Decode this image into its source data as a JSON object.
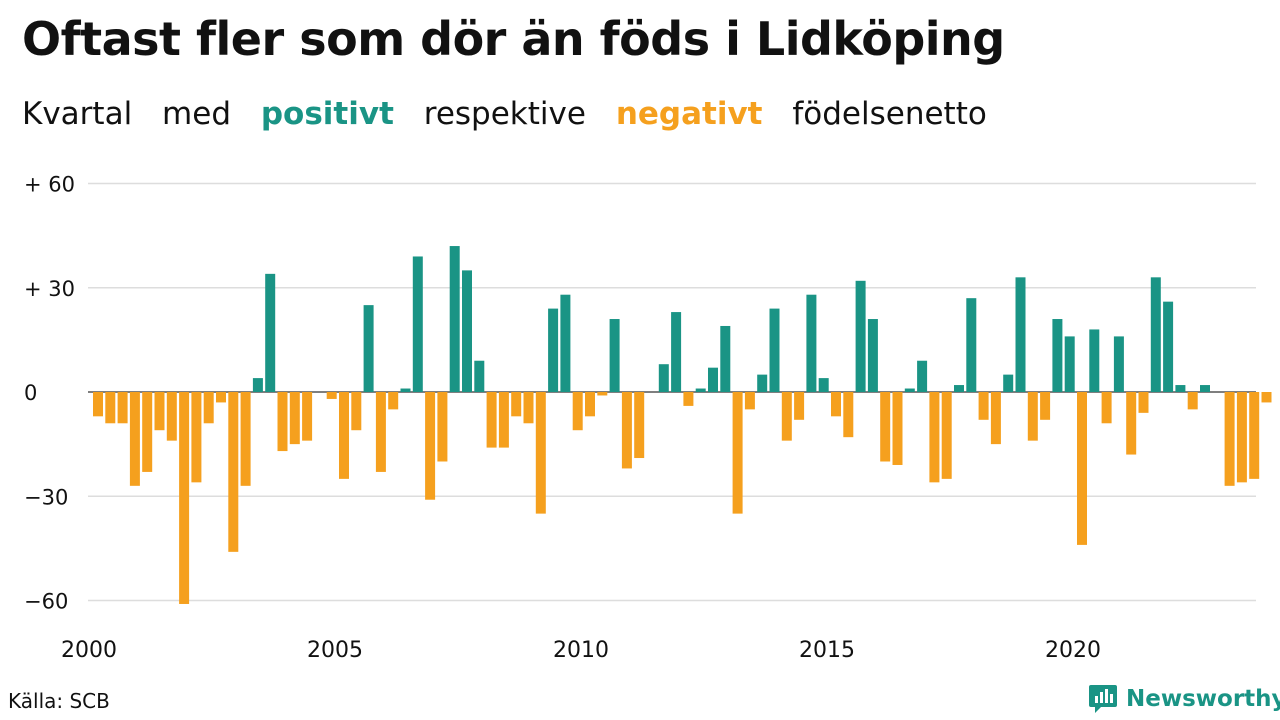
{
  "title": "Oftast fler som dör än föds i Lidköping",
  "subtitle": {
    "w1": "Kvartal",
    "w2": "med",
    "positive": "positivt",
    "w3": "respektive",
    "negative": "negativt",
    "w4": "födelsenetto"
  },
  "source": "Källa: SCB",
  "brand": "Newsworthy",
  "colors": {
    "positive": "#1a9485",
    "negative": "#f5a01e",
    "grid": "#dddddd",
    "axis": "#333333"
  },
  "chart_data": {
    "type": "bar",
    "title": "Oftast fler som dör än föds i Lidköping",
    "xlabel": "",
    "ylabel": "",
    "ylim": [
      -65,
      60
    ],
    "grid": true,
    "y_ticks": [
      {
        "value": 60,
        "label": "+ 60"
      },
      {
        "value": 30,
        "label": "+ 30"
      },
      {
        "value": 0,
        "label": "0"
      },
      {
        "value": -30,
        "label": "−30"
      },
      {
        "value": -60,
        "label": "−60"
      }
    ],
    "x_ticks": [
      "2000",
      "2005",
      "2010",
      "2015",
      "2020"
    ],
    "categories": [
      "2000 Q1",
      "2000 Q2",
      "2000 Q3",
      "2000 Q4",
      "2001 Q1",
      "2001 Q2",
      "2001 Q3",
      "2001 Q4",
      "2002 Q1",
      "2002 Q2",
      "2002 Q3",
      "2002 Q4",
      "2003 Q1",
      "2003 Q2",
      "2003 Q3",
      "2003 Q4",
      "2004 Q1",
      "2004 Q2",
      "2004 Q3",
      "2004 Q4",
      "2005 Q1",
      "2005 Q2",
      "2005 Q3",
      "2005 Q4",
      "2006 Q1",
      "2006 Q2",
      "2006 Q3",
      "2006 Q4",
      "2007 Q1",
      "2007 Q2",
      "2007 Q3",
      "2007 Q4",
      "2008 Q1",
      "2008 Q2",
      "2008 Q3",
      "2008 Q4",
      "2009 Q1",
      "2009 Q2",
      "2009 Q3",
      "2009 Q4",
      "2010 Q1",
      "2010 Q2",
      "2010 Q3",
      "2010 Q4",
      "2011 Q1",
      "2011 Q2",
      "2011 Q3",
      "2011 Q4",
      "2012 Q1",
      "2012 Q2",
      "2012 Q3",
      "2012 Q4",
      "2013 Q1",
      "2013 Q2",
      "2013 Q3",
      "2013 Q4",
      "2014 Q1",
      "2014 Q2",
      "2014 Q3",
      "2014 Q4",
      "2015 Q1",
      "2015 Q2",
      "2015 Q3",
      "2015 Q4",
      "2016 Q1",
      "2016 Q2",
      "2016 Q3",
      "2016 Q4",
      "2017 Q1",
      "2017 Q2",
      "2017 Q3",
      "2017 Q4",
      "2018 Q1",
      "2018 Q2",
      "2018 Q3",
      "2018 Q4",
      "2019 Q1",
      "2019 Q2",
      "2019 Q3",
      "2019 Q4",
      "2020 Q1",
      "2020 Q2",
      "2020 Q3",
      "2020 Q4",
      "2021 Q1",
      "2021 Q2",
      "2021 Q3",
      "2021 Q4",
      "2022 Q1",
      "2022 Q2",
      "2022 Q3",
      "2022 Q4",
      "2023 Q1",
      "2023 Q2",
      "2023 Q3",
      "2023 Q4"
    ],
    "values": [
      -7,
      -9,
      -9,
      -27,
      -23,
      -11,
      -14,
      -61,
      -26,
      -9,
      -3,
      -46,
      -27,
      4,
      34,
      -17,
      -15,
      -14,
      0,
      -2,
      -25,
      -11,
      25,
      -23,
      -5,
      1,
      39,
      -31,
      -20,
      42,
      35,
      9,
      -16,
      -16,
      -7,
      -9,
      -35,
      24,
      28,
      -11,
      -7,
      -1,
      21,
      -22,
      -19,
      0,
      8,
      23,
      -4,
      1,
      7,
      19,
      -35,
      -5,
      5,
      24,
      -14,
      -8,
      28,
      4,
      -7,
      -13,
      32,
      21,
      -20,
      -21,
      1,
      9,
      -26,
      -25,
      2,
      27,
      -8,
      -15,
      5,
      33,
      -14,
      -8,
      21,
      16,
      -44,
      18,
      -9,
      16,
      -18,
      -6,
      33,
      26,
      2,
      -5,
      2,
      0,
      -27,
      -26,
      -25,
      -3
    ]
  }
}
